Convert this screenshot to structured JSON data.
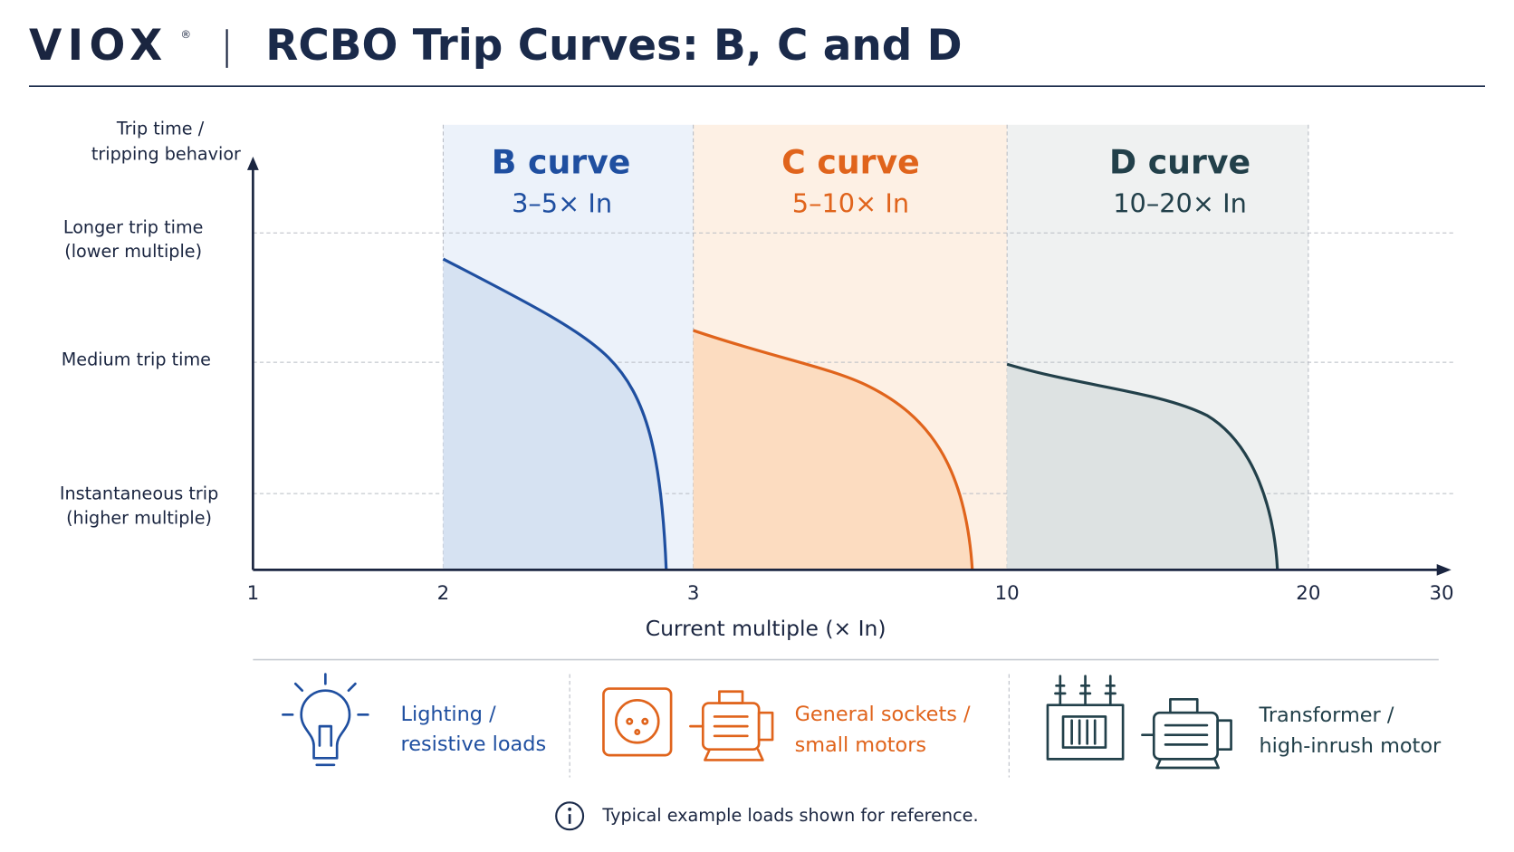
{
  "header": {
    "brand": "VIOX",
    "brand_mark": "®",
    "title": "RCBO Trip Curves: B, C and D"
  },
  "y_axis": {
    "title": [
      "Trip time /",
      "tripping behavior"
    ],
    "levels": [
      [
        "Longer trip time",
        "(lower multiple)"
      ],
      [
        "Medium trip time"
      ],
      [
        "Instantaneous trip",
        "(higher multiple)"
      ]
    ]
  },
  "x_axis": {
    "title": "Current multiple (× In)",
    "ticks": [
      "1",
      "2",
      "3",
      "10",
      "20",
      "30"
    ]
  },
  "curves": [
    {
      "name": "B curve",
      "range": "3–5× In"
    },
    {
      "name": "C curve",
      "range": "5–10× In"
    },
    {
      "name": "D curve",
      "range": "10–20× In"
    }
  ],
  "loads": [
    {
      "lines": [
        "Lighting /",
        "resistive loads"
      ]
    },
    {
      "lines": [
        "General sockets /",
        "small motors"
      ]
    },
    {
      "lines": [
        "Transformer /",
        "high-inrush motor"
      ]
    }
  ],
  "note": "Typical example loads shown for reference."
}
